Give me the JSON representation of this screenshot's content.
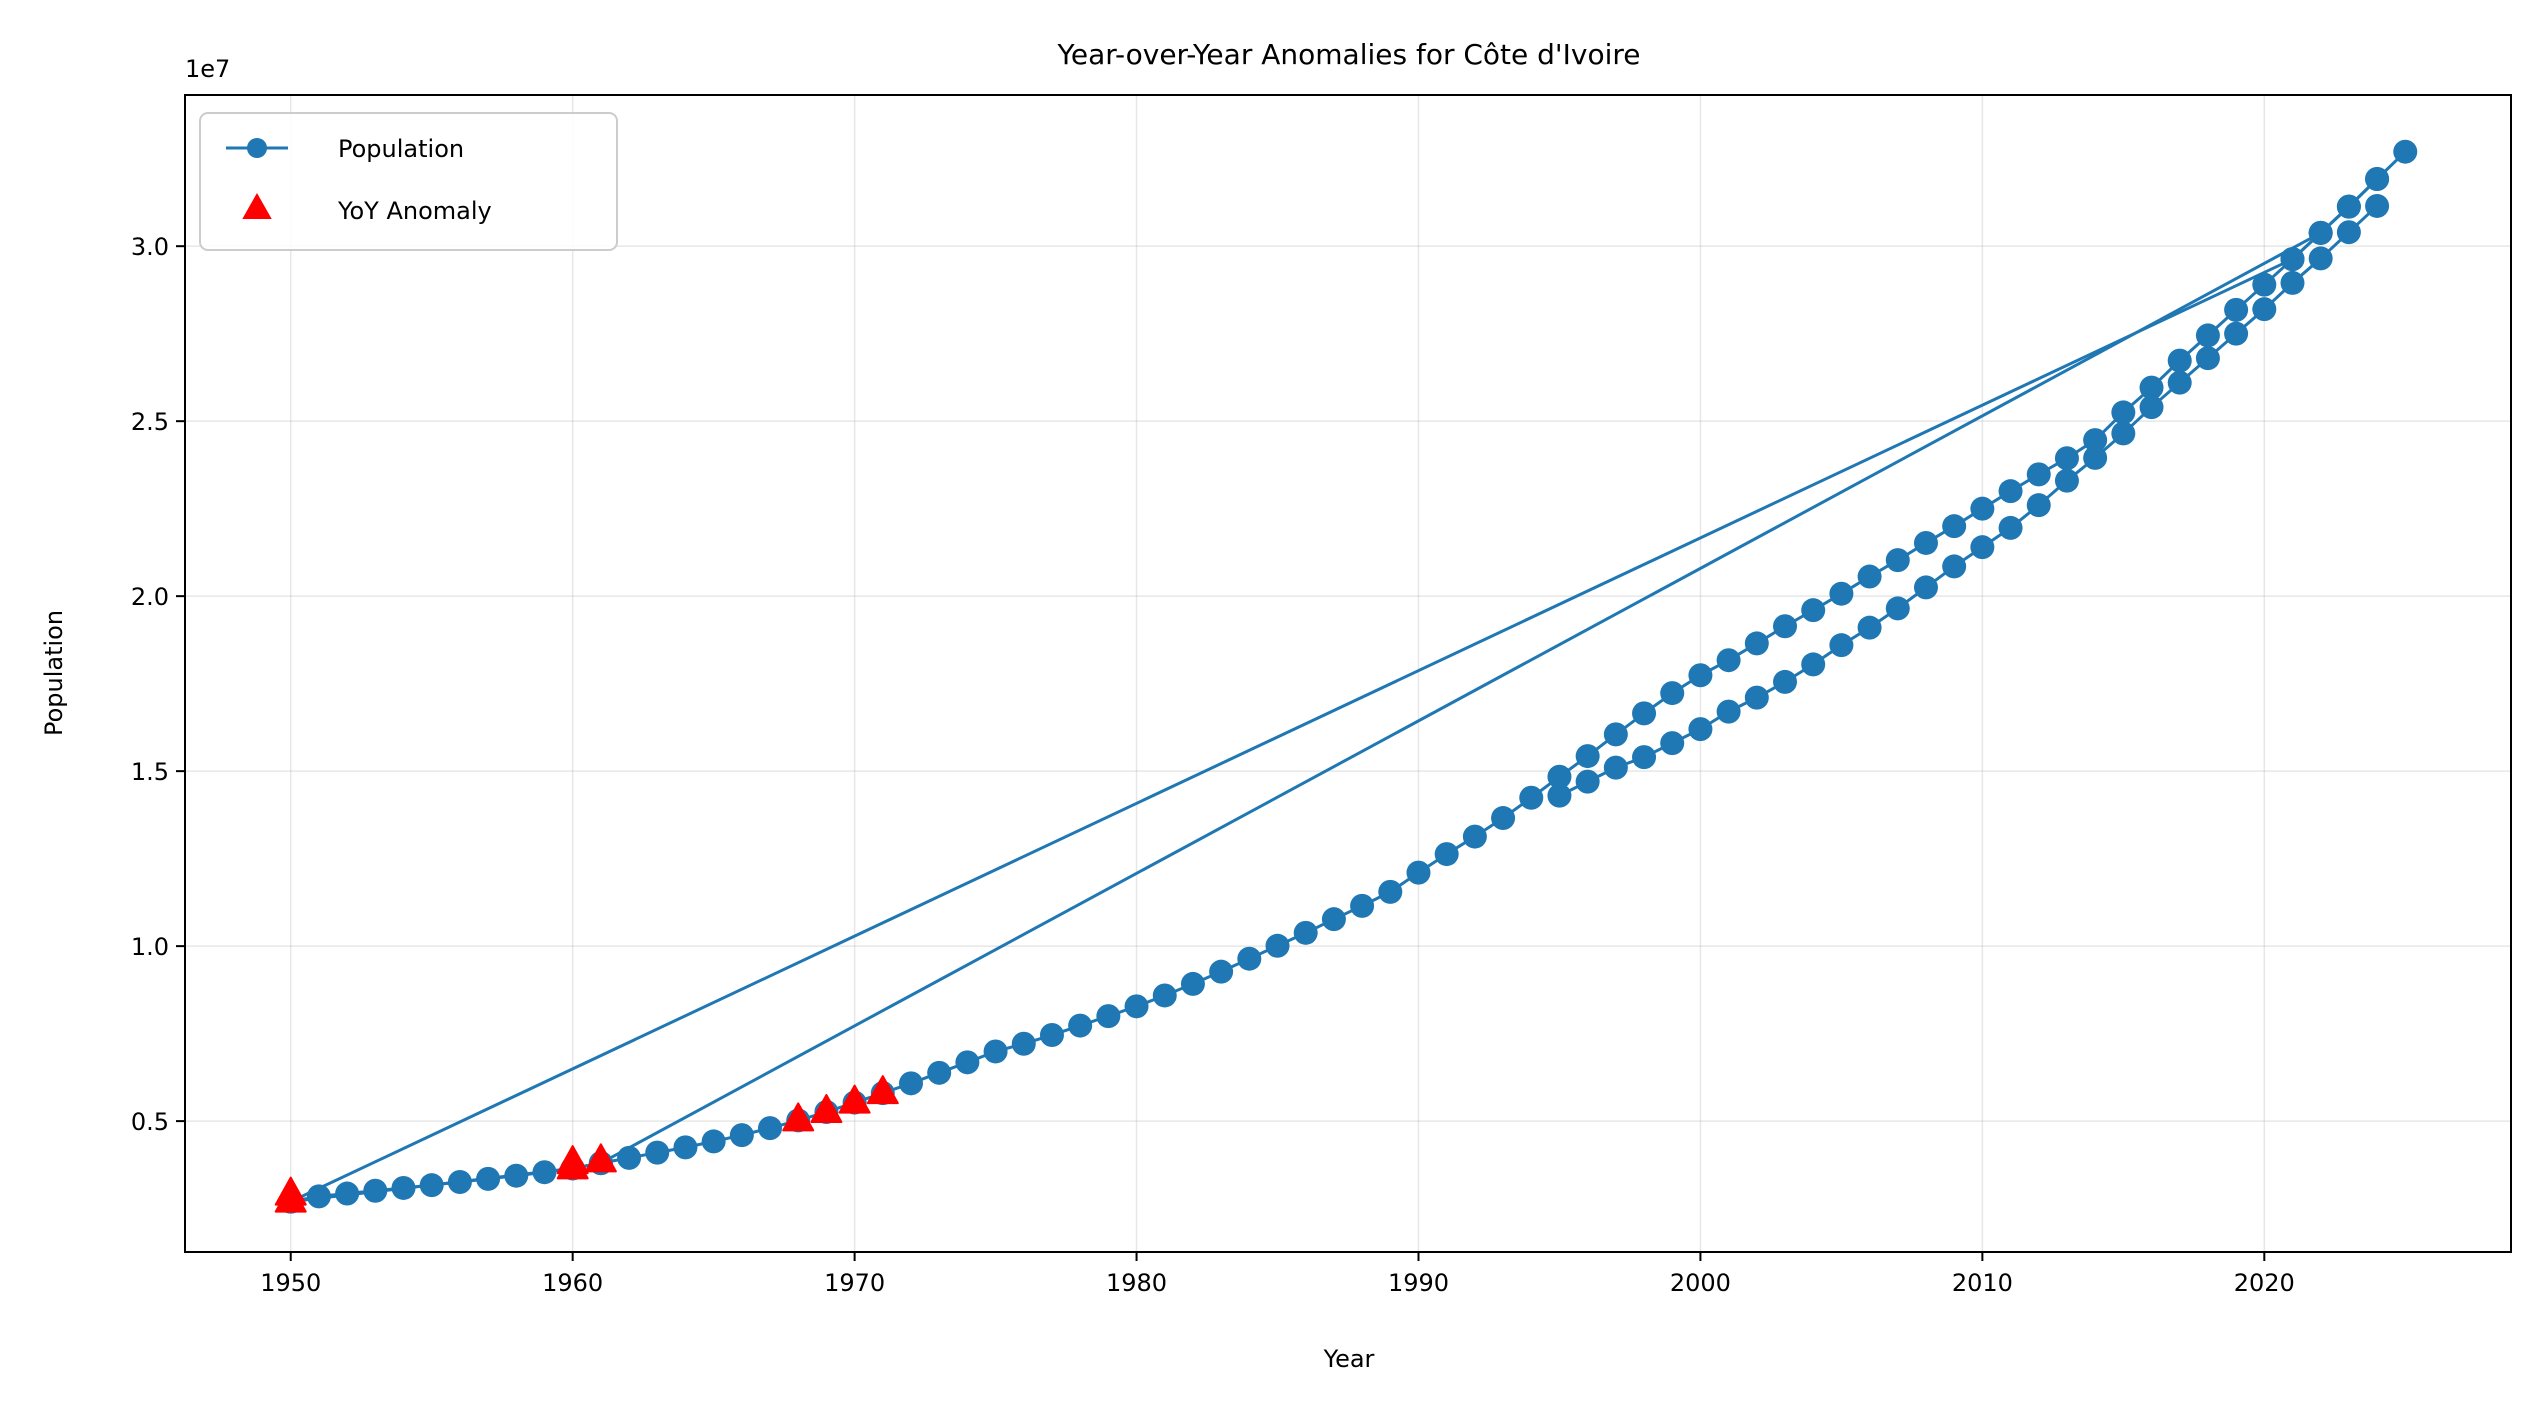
{
  "chart_data": {
    "type": "line",
    "title": "Year-over-Year Anomalies for Côte d'Ivoire",
    "xlabel": "Year",
    "ylabel": "Population",
    "y_scale_label": "1e7",
    "xlim": [
      1946.25,
      2028.75
    ],
    "ylim": [
      1260000,
      34320000
    ],
    "x_ticks": [
      1950,
      1960,
      1970,
      1980,
      1990,
      2000,
      2010,
      2020
    ],
    "x_tick_labels": [
      "1950",
      "1960",
      "1970",
      "1980",
      "1990",
      "2000",
      "2010",
      "2020"
    ],
    "y_ticks": [
      5000000,
      10000000,
      15000000,
      20000000,
      25000000,
      30000000
    ],
    "y_tick_labels": [
      "0.5",
      "1.0",
      "1.5",
      "2.0",
      "2.5",
      "3.0"
    ],
    "grid": true,
    "legend_position": "upper-left",
    "legend": [
      {
        "label": "Population",
        "marker": "circle-line"
      },
      {
        "label": "YoY Anomaly",
        "marker": "triangle"
      }
    ],
    "colors": {
      "line": "#1f77b4",
      "anomaly": "#ff0000"
    },
    "series": [
      {
        "name": "Population",
        "segments": [
          {
            "x": [
              1950,
              1951,
              1952,
              1953,
              1954,
              1955,
              1956,
              1957,
              1958,
              1959,
              1960,
              1961,
              1962,
              1963,
              1964,
              1965,
              1966,
              1967,
              1968,
              1969,
              1970,
              1971,
              1972,
              1973,
              1974,
              1975,
              1976,
              1977,
              1978,
              1979,
              1980,
              1981,
              1982,
              1983,
              1984,
              1985,
              1986,
              1987,
              1988,
              1989,
              1990,
              1991,
              1992,
              1993,
              1994,
              1995,
              1996,
              1997,
              1998,
              1999,
              2000,
              2001,
              2002,
              2003,
              2004,
              2005,
              2006,
              2007,
              2008,
              2009,
              2010,
              2011,
              2012,
              2013,
              2014,
              2015,
              2016,
              2017,
              2018,
              2019,
              2020,
              2021,
              2022,
              2023,
              2024,
              2025
            ],
            "y": [
              2700000,
              2850000,
              2930000,
              3010000,
              3090000,
              3170000,
              3260000,
              3350000,
              3440000,
              3540000,
              3650000,
              3800000,
              3950000,
              4100000,
              4250000,
              4420000,
              4600000,
              4800000,
              5020000,
              5260000,
              5530000,
              5800000,
              6080000,
              6380000,
              6680000,
              6990000,
              7210000,
              7460000,
              7730000,
              8000000,
              8280000,
              8590000,
              8920000,
              9270000,
              9640000,
              10010000,
              10380000,
              10770000,
              11150000,
              11550000,
              12100000,
              12630000,
              13130000,
              13660000,
              14240000,
              14840000,
              15430000,
              16050000,
              16650000,
              17230000,
              17740000,
              18170000,
              18650000,
              19140000,
              19600000,
              20070000,
              20560000,
              21030000,
              21520000,
              22000000,
              22500000,
              23000000,
              23480000,
              23940000,
              24460000,
              25250000,
              25960000,
              26730000,
              27450000,
              28180000,
              28900000,
              29630000,
              30380000,
              31130000,
              31920000,
              32700000
            ]
          },
          {
            "x": [
              1950,
              1960,
              1961
            ],
            "y": [
              2700000,
              3650000,
              3800000
            ]
          },
          {
            "x": [
              1961,
              2022,
              2023,
              2024
            ],
            "y": [
              3800000,
              30380000,
              31130000,
              31920000
            ]
          },
          {
            "x": [
              1950,
              2021,
              2022
            ],
            "y": [
              2700000,
              29630000,
              30380000
            ]
          },
          {
            "x": [
              1995,
              1996,
              1997,
              1998,
              1999,
              2000,
              2001,
              2002,
              2003,
              2004,
              2005,
              2006,
              2007,
              2008,
              2009,
              2010,
              2011,
              2012,
              2013,
              2014,
              2015,
              2016,
              2017,
              2018,
              2019,
              2020,
              2021,
              2022,
              2023,
              2024
            ],
            "y": [
              14300000,
              14700000,
              15100000,
              15400000,
              15800000,
              16200000,
              16700000,
              17100000,
              17550000,
              18050000,
              18600000,
              19100000,
              19650000,
              20250000,
              20850000,
              21400000,
              21950000,
              22600000,
              23300000,
              23950000,
              24650000,
              25400000,
              26100000,
              26800000,
              27500000,
              28200000,
              28950000,
              29650000,
              30400000,
              31150000
            ]
          }
        ]
      },
      {
        "name": "YoY Anomaly",
        "x": [
          1950,
          1950,
          1960,
          1960,
          1961,
          1968,
          1969,
          1970,
          1971
        ],
        "y": [
          2700000,
          2900000,
          3650000,
          3800000,
          3850000,
          5020000,
          5260000,
          5530000,
          5800000
        ]
      }
    ]
  }
}
